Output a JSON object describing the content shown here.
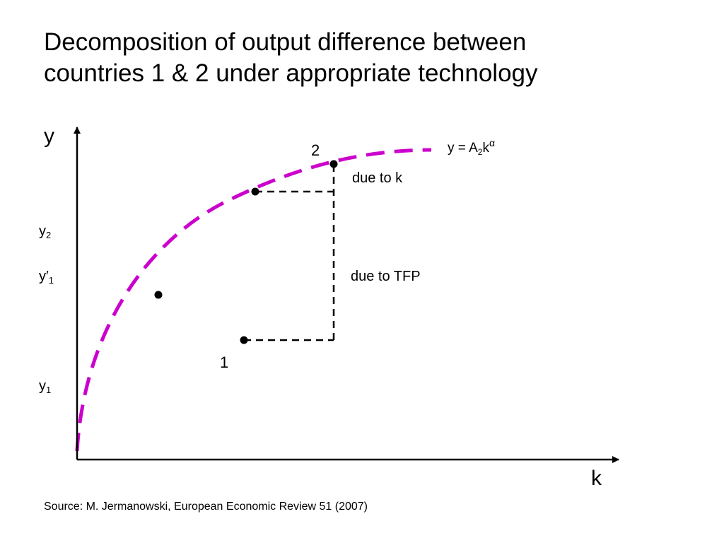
{
  "title": {
    "line1": "Decomposition of output difference between",
    "line2": "countries 1 & 2 under appropriate technology"
  },
  "axes": {
    "y_label": "y",
    "x_label": "k"
  },
  "y_ticks": {
    "y2": {
      "base": "y",
      "sub": "2"
    },
    "y1_prime": {
      "base": "y′",
      "sub": "1"
    },
    "y1": {
      "base": "y",
      "sub": "1"
    }
  },
  "points": {
    "country2": "2",
    "country1": "1"
  },
  "annotations": {
    "due_to_k": "due to k",
    "due_to_tfp": "due to TFP"
  },
  "curve_label": {
    "prefix": "y = A",
    "sub": "2",
    "base": "k",
    "sup": "α"
  },
  "source": "Source:  M. Jermanowski, European Economic Review 51 (2007)",
  "colors": {
    "curve": "#cc00cc",
    "axes": "#000000",
    "dashed": "#000000"
  }
}
